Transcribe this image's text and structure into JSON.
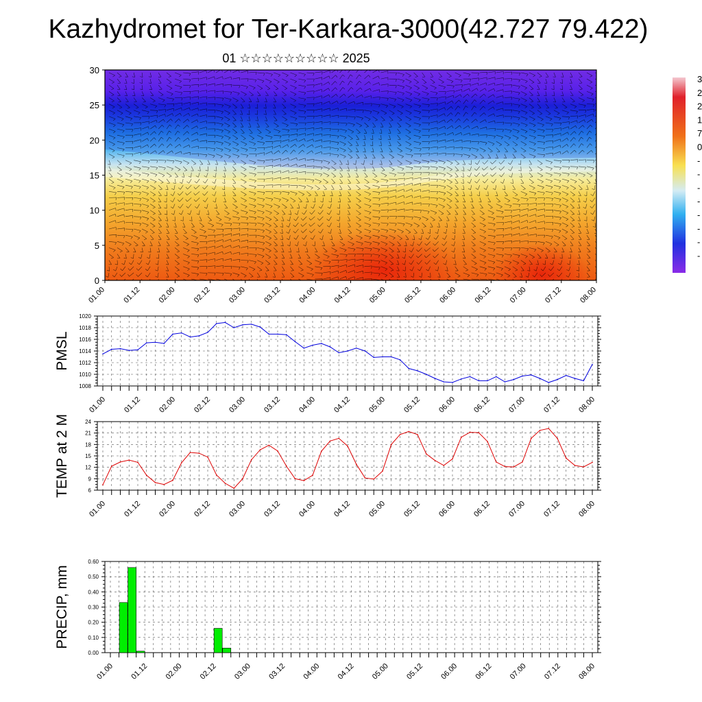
{
  "title": "Kazhydromet for Ter-Karkara-3000(42.727 79.422)",
  "subtitle": "01 ☆☆☆☆☆☆☆☆☆ 2025",
  "time_ticks": [
    "01.00",
    "01.12",
    "02.00",
    "02.12",
    "03.00",
    "03.12",
    "04.00",
    "04.12",
    "05.00",
    "05.12",
    "06.00",
    "06.12",
    "07.00",
    "07.12",
    "08.00"
  ],
  "colors": {
    "pmsl_line": "#0000dd",
    "temp_line": "#dd0000",
    "precip_bar": "#00ee00",
    "grid": "#555555"
  },
  "chart_data": [
    {
      "type": "heatmap",
      "name": "vertical-section",
      "ylim": [
        0,
        30
      ],
      "yticks": [
        0,
        5,
        10,
        15,
        20,
        25,
        30
      ],
      "colorbar_labels": [
        "3",
        "2",
        "2",
        "1",
        "7",
        "0",
        "-",
        "-",
        "-",
        "-",
        "-",
        "-",
        "-",
        "-"
      ],
      "grid": true
    },
    {
      "type": "line",
      "name": "pmsl",
      "ylabel": "PMSL",
      "ylim": [
        1008,
        1020
      ],
      "yticks": [
        1008,
        1010,
        1012,
        1014,
        1016,
        1018,
        1020
      ],
      "x_step_hours": 3,
      "values": [
        1013.5,
        1014.3,
        1014.4,
        1014.1,
        1014.2,
        1015.4,
        1015.5,
        1015.3,
        1016.9,
        1017.1,
        1016.4,
        1016.6,
        1017.2,
        1018.7,
        1018.9,
        1018.0,
        1018.5,
        1018.6,
        1018.1,
        1016.9,
        1016.9,
        1016.8,
        1015.6,
        1014.5,
        1015.0,
        1015.3,
        1014.7,
        1013.7,
        1014.0,
        1014.5,
        1014.0,
        1012.9,
        1013.0,
        1013.0,
        1012.5,
        1011.0,
        1010.6,
        1010.0,
        1009.3,
        1008.7,
        1008.6,
        1009.2,
        1009.6,
        1008.9,
        1008.9,
        1009.6,
        1008.7,
        1009.1,
        1009.7,
        1009.9,
        1009.3,
        1008.6,
        1009.1,
        1009.8,
        1009.3,
        1008.9,
        1011.7
      ],
      "grid": true
    },
    {
      "type": "line",
      "name": "temp",
      "ylabel": "TEMP at 2 M",
      "ylim": [
        6,
        24
      ],
      "yticks": [
        6,
        9,
        12,
        15,
        18,
        21,
        24
      ],
      "x_step_hours": 3,
      "values": [
        7.4,
        12.3,
        13.4,
        13.9,
        13.3,
        9.9,
        8.0,
        7.5,
        8.6,
        13.2,
        15.9,
        15.7,
        14.7,
        10.0,
        7.8,
        6.5,
        9.0,
        14.0,
        16.6,
        17.8,
        16.3,
        12.3,
        9.0,
        8.5,
        9.9,
        16.2,
        18.9,
        19.6,
        17.6,
        12.8,
        9.2,
        8.9,
        11.0,
        18.0,
        20.6,
        21.4,
        20.6,
        15.5,
        13.8,
        12.5,
        14.2,
        19.9,
        21.2,
        21.1,
        18.8,
        13.4,
        12.2,
        12.1,
        13.4,
        19.6,
        21.7,
        22.2,
        19.6,
        14.4,
        12.5,
        12.1,
        13.3
      ],
      "grid": true
    },
    {
      "type": "bar",
      "name": "precip",
      "ylabel": "PRECIP, mm",
      "ylim": [
        0,
        0.6
      ],
      "yticks": [
        "0.00",
        "0.10",
        "0.20",
        "0.30",
        "0.40",
        "0.50",
        "0.60"
      ],
      "x_step_hours": 3,
      "values": [
        0,
        0.33,
        0.56,
        0.01,
        0,
        0,
        0,
        0,
        0,
        0,
        0,
        0,
        0.16,
        0.03,
        0,
        0,
        0,
        0,
        0,
        0,
        0,
        0,
        0,
        0,
        0,
        0,
        0,
        0,
        0,
        0,
        0,
        0,
        0,
        0,
        0,
        0,
        0,
        0,
        0,
        0,
        0,
        0,
        0,
        0,
        0,
        0,
        0,
        0,
        0,
        0,
        0,
        0,
        0,
        0,
        0,
        0
      ],
      "grid": true
    }
  ]
}
